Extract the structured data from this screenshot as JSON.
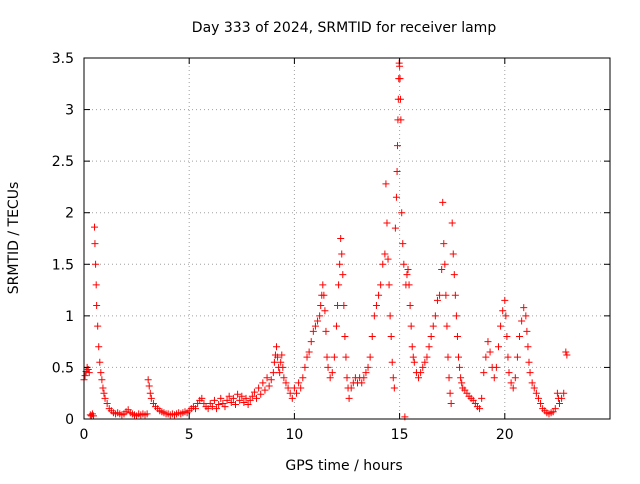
{
  "chart_data": {
    "type": "scatter",
    "title": "Day 333 of 2024, SRMTID for receiver lamp",
    "xlabel": "GPS time / hours",
    "ylabel": "SRMTID / TECUs",
    "xlim": [
      0,
      25
    ],
    "ylim": [
      0,
      3.5
    ],
    "xticks": [
      0,
      5,
      10,
      15,
      20
    ],
    "xtick_labels": [
      "0",
      "5",
      "10",
      "15",
      "20"
    ],
    "yticks": [
      0,
      0.5,
      1,
      1.5,
      2,
      2.5,
      3,
      3.5
    ],
    "ytick_labels": [
      "0",
      "0.5",
      "1",
      "1.5",
      "2",
      "2.5",
      "3",
      "3.5"
    ],
    "grid": true,
    "marker": "+",
    "color": "#ff0000",
    "series": [
      {
        "name": "SRMTID",
        "points": [
          [
            0.0,
            0.38
          ],
          [
            0.05,
            0.42
          ],
          [
            0.1,
            0.46
          ],
          [
            0.15,
            0.5
          ],
          [
            0.2,
            0.48
          ],
          [
            0.25,
            0.45
          ],
          [
            0.3,
            0.04
          ],
          [
            0.35,
            0.03
          ],
          [
            0.4,
            0.05
          ],
          [
            0.45,
            0.03
          ],
          [
            0.5,
            1.86
          ],
          [
            0.52,
            1.7
          ],
          [
            0.55,
            1.5
          ],
          [
            0.58,
            1.3
          ],
          [
            0.6,
            1.1
          ],
          [
            0.65,
            0.9
          ],
          [
            0.7,
            0.7
          ],
          [
            0.75,
            0.55
          ],
          [
            0.8,
            0.45
          ],
          [
            0.85,
            0.38
          ],
          [
            0.9,
            0.3
          ],
          [
            0.95,
            0.25
          ],
          [
            1.0,
            0.2
          ],
          [
            1.1,
            0.15
          ],
          [
            1.2,
            0.1
          ],
          [
            1.3,
            0.08
          ],
          [
            1.4,
            0.06
          ],
          [
            1.5,
            0.05
          ],
          [
            1.6,
            0.06
          ],
          [
            1.7,
            0.05
          ],
          [
            1.8,
            0.04
          ],
          [
            1.9,
            0.05
          ],
          [
            2.0,
            0.07
          ],
          [
            2.1,
            0.09
          ],
          [
            2.2,
            0.06
          ],
          [
            2.3,
            0.05
          ],
          [
            2.4,
            0.04
          ],
          [
            2.5,
            0.03
          ],
          [
            2.6,
            0.05
          ],
          [
            2.7,
            0.04
          ],
          [
            2.8,
            0.05
          ],
          [
            2.9,
            0.04
          ],
          [
            3.0,
            0.05
          ],
          [
            3.05,
            0.38
          ],
          [
            3.1,
            0.32
          ],
          [
            3.15,
            0.25
          ],
          [
            3.2,
            0.2
          ],
          [
            3.3,
            0.15
          ],
          [
            3.4,
            0.12
          ],
          [
            3.5,
            0.1
          ],
          [
            3.6,
            0.08
          ],
          [
            3.7,
            0.07
          ],
          [
            3.8,
            0.06
          ],
          [
            3.9,
            0.05
          ],
          [
            4.0,
            0.05
          ],
          [
            4.1,
            0.04
          ],
          [
            4.2,
            0.05
          ],
          [
            4.3,
            0.04
          ],
          [
            4.4,
            0.05
          ],
          [
            4.5,
            0.06
          ],
          [
            4.6,
            0.05
          ],
          [
            4.7,
            0.06
          ],
          [
            4.8,
            0.07
          ],
          [
            4.9,
            0.06
          ],
          [
            5.0,
            0.08
          ],
          [
            5.1,
            0.1
          ],
          [
            5.2,
            0.12
          ],
          [
            5.3,
            0.1
          ],
          [
            5.4,
            0.15
          ],
          [
            5.5,
            0.18
          ],
          [
            5.6,
            0.2
          ],
          [
            5.7,
            0.15
          ],
          [
            5.8,
            0.12
          ],
          [
            5.9,
            0.1
          ],
          [
            6.0,
            0.15
          ],
          [
            6.1,
            0.12
          ],
          [
            6.2,
            0.18
          ],
          [
            6.3,
            0.1
          ],
          [
            6.4,
            0.14
          ],
          [
            6.5,
            0.2
          ],
          [
            6.6,
            0.15
          ],
          [
            6.7,
            0.12
          ],
          [
            6.8,
            0.18
          ],
          [
            6.9,
            0.22
          ],
          [
            7.0,
            0.16
          ],
          [
            7.1,
            0.2
          ],
          [
            7.2,
            0.14
          ],
          [
            7.3,
            0.24
          ],
          [
            7.4,
            0.18
          ],
          [
            7.5,
            0.22
          ],
          [
            7.6,
            0.16
          ],
          [
            7.7,
            0.2
          ],
          [
            7.8,
            0.14
          ],
          [
            7.9,
            0.18
          ],
          [
            8.0,
            0.22
          ],
          [
            8.1,
            0.26
          ],
          [
            8.2,
            0.2
          ],
          [
            8.3,
            0.3
          ],
          [
            8.4,
            0.24
          ],
          [
            8.5,
            0.35
          ],
          [
            8.6,
            0.28
          ],
          [
            8.7,
            0.4
          ],
          [
            8.8,
            0.32
          ],
          [
            8.9,
            0.38
          ],
          [
            9.0,
            0.45
          ],
          [
            9.05,
            0.55
          ],
          [
            9.1,
            0.62
          ],
          [
            9.15,
            0.7
          ],
          [
            9.2,
            0.6
          ],
          [
            9.25,
            0.5
          ],
          [
            9.3,
            0.45
          ],
          [
            9.35,
            0.55
          ],
          [
            9.4,
            0.62
          ],
          [
            9.45,
            0.5
          ],
          [
            9.5,
            0.4
          ],
          [
            9.6,
            0.35
          ],
          [
            9.7,
            0.3
          ],
          [
            9.8,
            0.25
          ],
          [
            9.9,
            0.2
          ],
          [
            10.0,
            0.3
          ],
          [
            10.1,
            0.25
          ],
          [
            10.2,
            0.35
          ],
          [
            10.3,
            0.3
          ],
          [
            10.4,
            0.4
          ],
          [
            10.5,
            0.5
          ],
          [
            10.6,
            0.6
          ],
          [
            10.7,
            0.65
          ],
          [
            10.8,
            0.75
          ],
          [
            10.9,
            0.85
          ],
          [
            11.0,
            0.9
          ],
          [
            11.1,
            0.95
          ],
          [
            11.2,
            1.0
          ],
          [
            11.25,
            1.1
          ],
          [
            11.3,
            1.2
          ],
          [
            11.35,
            1.3
          ],
          [
            11.4,
            1.2
          ],
          [
            11.45,
            1.05
          ],
          [
            11.5,
            0.85
          ],
          [
            11.55,
            0.6
          ],
          [
            11.6,
            0.5
          ],
          [
            11.7,
            0.4
          ],
          [
            11.8,
            0.45
          ],
          [
            11.9,
            0.6
          ],
          [
            12.0,
            0.9
          ],
          [
            12.05,
            1.1
          ],
          [
            12.1,
            1.3
          ],
          [
            12.15,
            1.5
          ],
          [
            12.2,
            1.75
          ],
          [
            12.25,
            1.6
          ],
          [
            12.3,
            1.4
          ],
          [
            12.35,
            1.1
          ],
          [
            12.4,
            0.8
          ],
          [
            12.45,
            0.6
          ],
          [
            12.5,
            0.4
          ],
          [
            12.55,
            0.3
          ],
          [
            12.6,
            0.2
          ],
          [
            12.7,
            0.3
          ],
          [
            12.8,
            0.35
          ],
          [
            12.9,
            0.4
          ],
          [
            13.0,
            0.35
          ],
          [
            13.1,
            0.4
          ],
          [
            13.2,
            0.35
          ],
          [
            13.3,
            0.4
          ],
          [
            13.4,
            0.45
          ],
          [
            13.5,
            0.5
          ],
          [
            13.6,
            0.6
          ],
          [
            13.7,
            0.8
          ],
          [
            13.8,
            1.0
          ],
          [
            13.9,
            1.1
          ],
          [
            14.0,
            1.2
          ],
          [
            14.1,
            1.3
          ],
          [
            14.2,
            1.5
          ],
          [
            14.3,
            1.6
          ],
          [
            14.35,
            2.28
          ],
          [
            14.4,
            1.9
          ],
          [
            14.45,
            1.55
          ],
          [
            14.5,
            1.3
          ],
          [
            14.55,
            1.0
          ],
          [
            14.6,
            0.8
          ],
          [
            14.65,
            0.55
          ],
          [
            14.7,
            0.4
          ],
          [
            14.75,
            0.3
          ],
          [
            14.8,
            1.85
          ],
          [
            14.85,
            2.15
          ],
          [
            14.88,
            2.4
          ],
          [
            14.9,
            2.65
          ],
          [
            14.92,
            2.9
          ],
          [
            14.94,
            3.1
          ],
          [
            14.96,
            3.3
          ],
          [
            14.98,
            3.45
          ],
          [
            15.0,
            3.42
          ],
          [
            15.02,
            3.3
          ],
          [
            15.04,
            3.1
          ],
          [
            15.06,
            2.9
          ],
          [
            15.1,
            2.0
          ],
          [
            15.15,
            1.7
          ],
          [
            15.2,
            1.5
          ],
          [
            15.25,
            0.02
          ],
          [
            15.3,
            1.3
          ],
          [
            15.35,
            1.4
          ],
          [
            15.4,
            1.45
          ],
          [
            15.45,
            1.3
          ],
          [
            15.5,
            1.1
          ],
          [
            15.55,
            0.9
          ],
          [
            15.6,
            0.7
          ],
          [
            15.65,
            0.6
          ],
          [
            15.7,
            0.55
          ],
          [
            15.8,
            0.45
          ],
          [
            15.9,
            0.4
          ],
          [
            16.0,
            0.45
          ],
          [
            16.1,
            0.5
          ],
          [
            16.2,
            0.55
          ],
          [
            16.3,
            0.6
          ],
          [
            16.4,
            0.7
          ],
          [
            16.5,
            0.8
          ],
          [
            16.6,
            0.9
          ],
          [
            16.7,
            1.0
          ],
          [
            16.8,
            1.15
          ],
          [
            16.9,
            1.2
          ],
          [
            17.0,
            1.45
          ],
          [
            17.05,
            2.1
          ],
          [
            17.1,
            1.7
          ],
          [
            17.15,
            1.5
          ],
          [
            17.2,
            1.2
          ],
          [
            17.25,
            0.9
          ],
          [
            17.3,
            0.6
          ],
          [
            17.35,
            0.4
          ],
          [
            17.4,
            0.25
          ],
          [
            17.45,
            0.15
          ],
          [
            17.5,
            1.9
          ],
          [
            17.55,
            1.6
          ],
          [
            17.6,
            1.4
          ],
          [
            17.65,
            1.2
          ],
          [
            17.7,
            1.0
          ],
          [
            17.75,
            0.8
          ],
          [
            17.8,
            0.6
          ],
          [
            17.85,
            0.5
          ],
          [
            17.9,
            0.4
          ],
          [
            17.95,
            0.35
          ],
          [
            18.0,
            0.3
          ],
          [
            18.1,
            0.28
          ],
          [
            18.2,
            0.25
          ],
          [
            18.3,
            0.22
          ],
          [
            18.4,
            0.2
          ],
          [
            18.5,
            0.18
          ],
          [
            18.6,
            0.15
          ],
          [
            18.7,
            0.12
          ],
          [
            18.8,
            0.1
          ],
          [
            18.9,
            0.2
          ],
          [
            19.0,
            0.45
          ],
          [
            19.1,
            0.6
          ],
          [
            19.2,
            0.75
          ],
          [
            19.3,
            0.65
          ],
          [
            19.4,
            0.5
          ],
          [
            19.5,
            0.4
          ],
          [
            19.6,
            0.5
          ],
          [
            19.7,
            0.7
          ],
          [
            19.8,
            0.9
          ],
          [
            19.9,
            1.05
          ],
          [
            20.0,
            1.15
          ],
          [
            20.05,
            1.0
          ],
          [
            20.1,
            0.8
          ],
          [
            20.15,
            0.6
          ],
          [
            20.2,
            0.45
          ],
          [
            20.3,
            0.35
          ],
          [
            20.4,
            0.3
          ],
          [
            20.5,
            0.4
          ],
          [
            20.6,
            0.6
          ],
          [
            20.7,
            0.8
          ],
          [
            20.8,
            0.95
          ],
          [
            20.9,
            1.08
          ],
          [
            21.0,
            1.0
          ],
          [
            21.05,
            0.85
          ],
          [
            21.1,
            0.7
          ],
          [
            21.15,
            0.55
          ],
          [
            21.2,
            0.45
          ],
          [
            21.3,
            0.35
          ],
          [
            21.4,
            0.3
          ],
          [
            21.5,
            0.25
          ],
          [
            21.6,
            0.2
          ],
          [
            21.7,
            0.15
          ],
          [
            21.8,
            0.1
          ],
          [
            21.9,
            0.08
          ],
          [
            22.0,
            0.06
          ],
          [
            22.1,
            0.05
          ],
          [
            22.2,
            0.06
          ],
          [
            22.3,
            0.07
          ],
          [
            22.4,
            0.1
          ],
          [
            22.5,
            0.25
          ],
          [
            22.55,
            0.2
          ],
          [
            22.6,
            0.15
          ],
          [
            22.7,
            0.2
          ],
          [
            22.8,
            0.25
          ],
          [
            22.9,
            0.65
          ],
          [
            22.95,
            0.62
          ]
        ]
      }
    ]
  }
}
